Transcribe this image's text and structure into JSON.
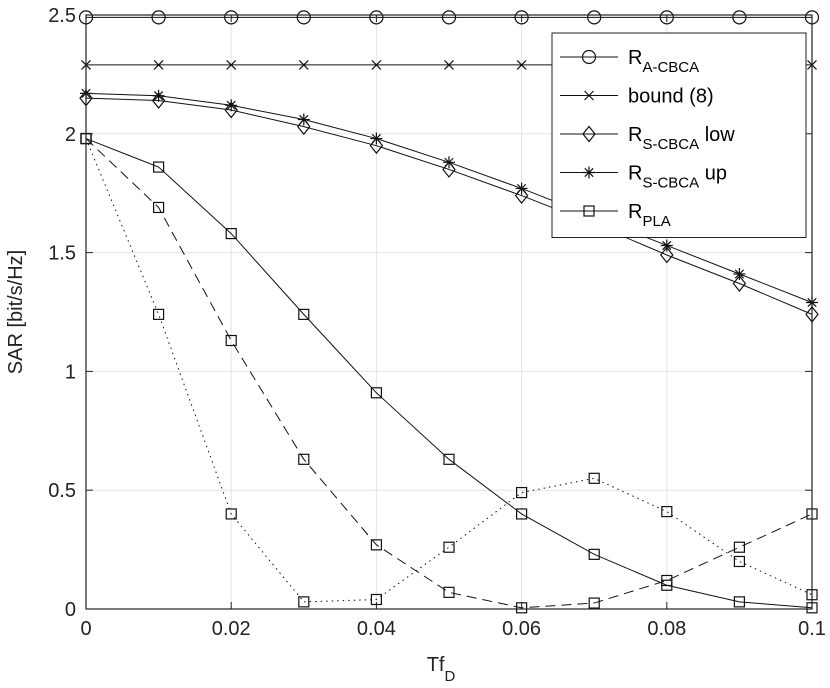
{
  "chart_data": {
    "type": "line",
    "title": "",
    "xlabel": {
      "main": "Tf",
      "sub": "D"
    },
    "ylabel": "SAR [bit/s/Hz]",
    "xlim": [
      0,
      0.1
    ],
    "ylim": [
      0,
      2.5
    ],
    "xticks": [
      0,
      0.02,
      0.04,
      0.06,
      0.08,
      0.1
    ],
    "xtick_labels": [
      "0",
      "0.02",
      "0.04",
      "0.06",
      "0.08",
      "0.1"
    ],
    "yticks": [
      0,
      0.5,
      1,
      1.5,
      2,
      2.5
    ],
    "ytick_labels": [
      "0",
      "0.5",
      "1",
      "1.5",
      "2",
      "2.5"
    ],
    "grid": true,
    "legend_position": "top-right",
    "x": [
      0,
      0.01,
      0.02,
      0.03,
      0.04,
      0.05,
      0.06,
      0.07,
      0.08,
      0.09,
      0.1
    ],
    "series": [
      {
        "id": "a-cbca",
        "name": "R",
        "sub": "A-CBCA",
        "suffix": "",
        "marker": "circle",
        "dash": "solid",
        "in_legend": true,
        "values": [
          2.49,
          2.49,
          2.49,
          2.49,
          2.49,
          2.49,
          2.49,
          2.49,
          2.49,
          2.49,
          2.49
        ]
      },
      {
        "id": "bound",
        "name": "bound (8)",
        "sub": "",
        "suffix": "",
        "marker": "x",
        "dash": "solid",
        "in_legend": true,
        "values": [
          2.29,
          2.29,
          2.29,
          2.29,
          2.29,
          2.29,
          2.29,
          2.29,
          2.29,
          2.29,
          2.29
        ]
      },
      {
        "id": "s-cbca-low",
        "name": "R",
        "sub": "S-CBCA",
        "suffix": " low",
        "marker": "diamond",
        "dash": "solid",
        "in_legend": true,
        "values": [
          2.15,
          2.14,
          2.1,
          2.03,
          1.95,
          1.85,
          1.74,
          1.62,
          1.49,
          1.37,
          1.24
        ]
      },
      {
        "id": "s-cbca-up",
        "name": "R",
        "sub": "S-CBCA",
        "suffix": " up",
        "marker": "asterisk",
        "dash": "solid",
        "in_legend": true,
        "values": [
          2.17,
          2.16,
          2.12,
          2.06,
          1.98,
          1.88,
          1.77,
          1.65,
          1.53,
          1.41,
          1.29
        ]
      },
      {
        "id": "pla-1",
        "name": "R",
        "sub": "PLA",
        "suffix": "",
        "marker": "square",
        "dash": "solid",
        "in_legend": true,
        "values": [
          1.98,
          1.86,
          1.58,
          1.24,
          0.91,
          0.63,
          0.4,
          0.23,
          0.1,
          0.03,
          0.005
        ]
      },
      {
        "id": "pla-2",
        "name": "R",
        "sub": "PLA",
        "suffix": "",
        "marker": "square",
        "dash": "dashed",
        "in_legend": false,
        "values": [
          1.98,
          1.69,
          1.13,
          0.63,
          0.27,
          0.07,
          0.005,
          0.025,
          0.12,
          0.26,
          0.4
        ]
      },
      {
        "id": "pla-3",
        "name": "R",
        "sub": "PLA",
        "suffix": "",
        "marker": "square",
        "dash": "dotted",
        "in_legend": false,
        "values": [
          1.98,
          1.24,
          0.4,
          0.03,
          0.04,
          0.26,
          0.49,
          0.55,
          0.41,
          0.2,
          0.06
        ]
      }
    ]
  }
}
